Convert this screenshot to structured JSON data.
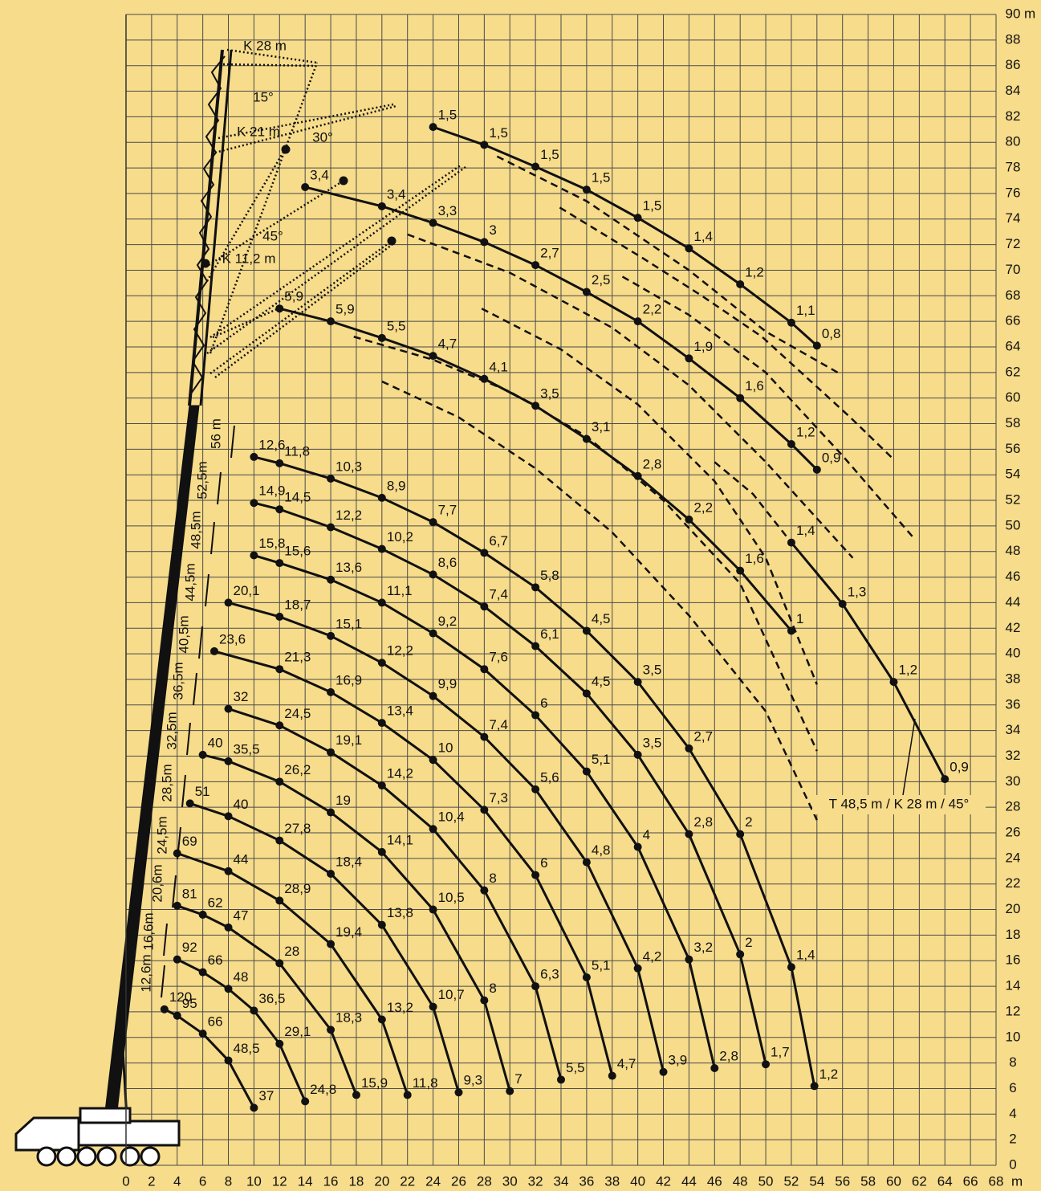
{
  "chart_data": {
    "type": "load_chart",
    "xlim": [
      0,
      68
    ],
    "ylim": [
      0,
      90
    ],
    "xticks": [
      0,
      2,
      4,
      6,
      8,
      10,
      12,
      14,
      16,
      18,
      20,
      22,
      24,
      26,
      28,
      30,
      32,
      34,
      36,
      38,
      40,
      42,
      44,
      46,
      48,
      50,
      52,
      54,
      56,
      58,
      60,
      62,
      64,
      66,
      68
    ],
    "yticks": [
      0,
      2,
      4,
      6,
      8,
      10,
      12,
      14,
      16,
      18,
      20,
      22,
      24,
      26,
      28,
      30,
      32,
      34,
      36,
      38,
      40,
      42,
      44,
      46,
      48,
      50,
      52,
      54,
      56,
      58,
      60,
      62,
      64,
      66,
      68,
      70,
      72,
      74,
      76,
      78,
      80,
      82,
      84,
      86,
      88,
      90
    ],
    "x_unit": "m",
    "y_unit": "m",
    "grid": true,
    "color": "#111111",
    "annotations": [
      "K 28 m",
      "15°",
      "30°",
      "K 21 m",
      "45°",
      "K 11,2 m"
    ],
    "series": [
      {
        "name": "12,6m",
        "x": [
          3,
          4,
          6,
          8,
          10
        ],
        "y": [
          12.2,
          11.7,
          10.3,
          8.2,
          4.5
        ],
        "loads": [
          "120",
          "95",
          "66",
          "48,5",
          "37"
        ]
      },
      {
        "name": "16,6m",
        "x": [
          4,
          6,
          8,
          10,
          12,
          14
        ],
        "y": [
          16.1,
          15.1,
          13.8,
          12.1,
          9.5,
          5.0
        ],
        "loads": [
          "92",
          "66",
          "48",
          "36,5",
          "29,1",
          "24,8"
        ]
      },
      {
        "name": "20,6m",
        "x": [
          4,
          6,
          8,
          12,
          16,
          18
        ],
        "y": [
          20.3,
          19.6,
          18.6,
          15.8,
          10.6,
          5.5
        ],
        "loads": [
          "81",
          "62",
          "47",
          "28",
          "18,3",
          "15,9"
        ]
      },
      {
        "name": "24,5m",
        "x": [
          4,
          8,
          12,
          16,
          20,
          22
        ],
        "y": [
          24.4,
          23.0,
          20.7,
          17.3,
          11.4,
          5.5
        ],
        "loads": [
          "69",
          "44",
          "28,9",
          "19,4",
          "13,2",
          "11,8"
        ]
      },
      {
        "name": "28,5m",
        "x": [
          5,
          8,
          12,
          16,
          20,
          24,
          26
        ],
        "y": [
          28.3,
          27.3,
          25.4,
          22.8,
          18.8,
          12.4,
          5.7
        ],
        "loads": [
          "51",
          "40",
          "27,8",
          "18,4",
          "13,8",
          "10,7",
          "9,3"
        ]
      },
      {
        "name": "32,5m",
        "x": [
          6,
          8,
          12,
          16,
          20,
          24,
          28,
          30
        ],
        "y": [
          32.1,
          31.6,
          30.0,
          27.6,
          24.5,
          20.0,
          12.9,
          5.8
        ],
        "loads": [
          "40",
          "35,5",
          "26,2",
          "19",
          "14,1",
          "10,5",
          "8",
          "7"
        ]
      },
      {
        "name": "36,5m",
        "x": [
          8,
          12,
          16,
          20,
          24,
          28,
          32,
          34
        ],
        "y": [
          35.7,
          34.4,
          32.3,
          29.7,
          26.3,
          21.5,
          14.0,
          6.7
        ],
        "loads": [
          "32",
          "24,5",
          "19,1",
          "14,2",
          "10,4",
          "8",
          "6,3",
          "5,5"
        ]
      },
      {
        "name": "40,5m",
        "x": [
          6.9,
          12,
          16,
          20,
          24,
          28,
          32,
          36,
          38
        ],
        "y": [
          40.2,
          38.8,
          37.0,
          34.6,
          31.7,
          27.8,
          22.7,
          14.7,
          7.0
        ],
        "loads": [
          "23,6",
          "21,3",
          "16,9",
          "13,4",
          "10",
          "7,3",
          "6",
          "5,1",
          "4,7"
        ]
      },
      {
        "name": "44,5m",
        "x": [
          8,
          12,
          16,
          20,
          24,
          28,
          32,
          36,
          40,
          42
        ],
        "y": [
          44.0,
          42.9,
          41.4,
          39.3,
          36.7,
          33.5,
          29.4,
          23.7,
          15.4,
          7.3
        ],
        "loads": [
          "20,1",
          "18,7",
          "15,1",
          "12,2",
          "9,9",
          "7,4",
          "5,6",
          "4,8",
          "4,2",
          "3,9"
        ]
      },
      {
        "name": "48,5m",
        "x": [
          10,
          12,
          16,
          20,
          24,
          28,
          32,
          36,
          40,
          44,
          46
        ],
        "y": [
          47.7,
          47.1,
          45.8,
          44.0,
          41.6,
          38.8,
          35.2,
          30.8,
          24.9,
          16.1,
          7.6
        ],
        "loads": [
          "15,8",
          "15,6",
          "13,6",
          "11,1",
          "9,2",
          "7,6",
          "6",
          "5,1",
          "4",
          "3,2",
          "2,8"
        ]
      },
      {
        "name": "52,5m",
        "x": [
          10,
          12,
          16,
          20,
          24,
          28,
          32,
          36,
          40,
          44,
          48,
          50
        ],
        "y": [
          51.8,
          51.3,
          49.9,
          48.2,
          46.2,
          43.7,
          40.6,
          36.9,
          32.1,
          25.9,
          16.5,
          7.9
        ],
        "loads": [
          "14,9",
          "14,5",
          "12,2",
          "10,2",
          "8,6",
          "7,4",
          "6,1",
          "4,5",
          "3,5",
          "2,8",
          "2",
          "1,7"
        ]
      },
      {
        "name": "56 m",
        "x": [
          10,
          12,
          16,
          20,
          24,
          28,
          32,
          36,
          40,
          44,
          48,
          52,
          53.8
        ],
        "y": [
          55.4,
          54.9,
          53.7,
          52.2,
          50.3,
          47.9,
          45.2,
          41.8,
          37.8,
          32.6,
          25.9,
          15.5,
          6.2
        ],
        "loads": [
          "12,6",
          "11,8",
          "10,3",
          "8,9",
          "7,7",
          "6,7",
          "5,8",
          "4,5",
          "3,5",
          "2,7",
          "2",
          "1,4",
          "1,2"
        ]
      },
      {
        "x": [
          24,
          28,
          32,
          36,
          40,
          44,
          48,
          52,
          54
        ],
        "y": [
          81.2,
          79.8,
          78.1,
          76.3,
          74.1,
          71.7,
          68.9,
          65.9,
          64.1
        ],
        "loads": [
          "1,5",
          "1,5",
          "1,5",
          "1,5",
          "1,5",
          "1,4",
          "1,2",
          "1,1",
          "0,8"
        ]
      },
      {
        "x": [
          14,
          20,
          24,
          28,
          32,
          36,
          40,
          44,
          48,
          52,
          54
        ],
        "y": [
          76.5,
          75.0,
          73.7,
          72.2,
          70.4,
          68.3,
          66.0,
          63.1,
          60.0,
          56.4,
          54.4
        ],
        "loads": [
          "3,4",
          "3,4",
          "3,3",
          "3",
          "2,7",
          "2,5",
          "2,2",
          "1,9",
          "1,6",
          "1,2",
          "0,9"
        ]
      },
      {
        "x": [
          12,
          16,
          20,
          24,
          28,
          32,
          36,
          40,
          44,
          48,
          52
        ],
        "y": [
          67.0,
          66.0,
          64.7,
          63.3,
          61.5,
          59.4,
          56.8,
          53.9,
          50.5,
          46.5,
          41.8
        ],
        "loads": [
          "5,9",
          "5,9",
          "5,5",
          "4,7",
          "4,1",
          "3,5",
          "3,1",
          "2,8",
          "2,2",
          "1,6",
          "1"
        ]
      },
      {
        "name": "T 48,5 m / K 28 m / 45°",
        "x": [
          52,
          56,
          60,
          64
        ],
        "y": [
          48.7,
          43.9,
          37.8,
          30.2
        ],
        "loads": [
          "1,4",
          "1,3",
          "1,2",
          "0,9"
        ]
      }
    ],
    "dashed": [
      {
        "x": [
          29,
          36,
          44,
          50,
          55.8
        ],
        "y": [
          78.9,
          75.4,
          70.0,
          65.2,
          61.9
        ]
      },
      {
        "x": [
          33.9,
          40.3,
          45,
          49.7,
          56.6,
          60
        ],
        "y": [
          74.9,
          71.0,
          68,
          64.8,
          58.5,
          55.2
        ]
      },
      {
        "x": [
          22,
          30,
          38,
          44,
          50,
          56.8
        ],
        "y": [
          72.8,
          69.8,
          65.5,
          61,
          55,
          47.5
        ]
      },
      {
        "x": [
          38.8,
          44,
          50,
          56,
          61.7
        ],
        "y": [
          69.5,
          66.5,
          62,
          55.5,
          48.9
        ]
      },
      {
        "x": [
          27.8,
          34,
          40,
          46,
          50,
          54
        ],
        "y": [
          67.0,
          63.8,
          59.5,
          53.5,
          47.5,
          37.6
        ]
      },
      {
        "x": [
          17.8,
          24,
          30,
          36,
          42,
          48,
          54
        ],
        "y": [
          64.8,
          63.0,
          60.5,
          57,
          52,
          45.5,
          32.4
        ]
      },
      {
        "x": [
          20,
          26,
          32,
          38,
          44,
          50,
          54
        ],
        "y": [
          61.3,
          58.5,
          54.5,
          49.5,
          43,
          35.5,
          27
        ]
      },
      {
        "x": [
          46,
          49,
          52
        ],
        "y": [
          55,
          52.5,
          48.7
        ]
      }
    ]
  }
}
